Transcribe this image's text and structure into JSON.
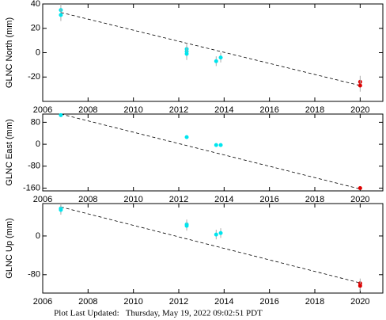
{
  "chart_data": [
    {
      "type": "scatter",
      "ylabel": "GLNC North (mm)",
      "xlim": [
        2006,
        2021
      ],
      "xticks": [
        2006,
        2008,
        2010,
        2012,
        2014,
        2016,
        2018,
        2020
      ],
      "ylim": [
        -40,
        40
      ],
      "yticks": [
        -20,
        0,
        20,
        40
      ],
      "series": [
        {
          "color": "#00e5ee",
          "x": [
            2006.8,
            2006.8,
            2012.35,
            2012.35,
            2012.35,
            2013.65,
            2013.85
          ],
          "values": [
            35,
            31,
            3,
            1,
            -1,
            -7,
            -4
          ],
          "errors": [
            5,
            5,
            5,
            5,
            5,
            4,
            4
          ]
        },
        {
          "color": "#dd0000",
          "x": [
            2020,
            2020
          ],
          "values": [
            -24,
            -27
          ],
          "errors": [
            5,
            5
          ]
        }
      ],
      "trend": {
        "x": [
          2006.8,
          2020
        ],
        "values": [
          33,
          -27
        ]
      }
    },
    {
      "type": "scatter",
      "ylabel": "GLNC East (mm)",
      "xlim": [
        2006,
        2021
      ],
      "xticks": [
        2006,
        2008,
        2010,
        2012,
        2014,
        2016,
        2018,
        2020
      ],
      "ylim": [
        -170,
        110
      ],
      "yticks": [
        -160,
        -80,
        0,
        80
      ],
      "series": [
        {
          "color": "#00e5ee",
          "x": [
            2006.8,
            2012.35,
            2013.65,
            2013.85
          ],
          "values": [
            106,
            26,
            -3,
            -3
          ],
          "errors": [
            4,
            4,
            4,
            4
          ]
        },
        {
          "color": "#dd0000",
          "x": [
            2020
          ],
          "values": [
            -160
          ],
          "errors": [
            4
          ]
        }
      ],
      "trend": {
        "x": [
          2006.8,
          2020
        ],
        "values": [
          110,
          -163
        ]
      }
    },
    {
      "type": "scatter",
      "ylabel": "GLNC Up (mm)",
      "xlim": [
        2006,
        2021
      ],
      "xticks": [
        2006,
        2008,
        2010,
        2012,
        2014,
        2016,
        2018,
        2020
      ],
      "ylim": [
        -118,
        67
      ],
      "yticks": [
        -80,
        0
      ],
      "series": [
        {
          "color": "#00e5ee",
          "x": [
            2006.8,
            2006.8,
            2012.35,
            2012.35,
            2013.65,
            2013.85
          ],
          "values": [
            57,
            54,
            24,
            21,
            3,
            6
          ],
          "errors": [
            10,
            10,
            10,
            10,
            10,
            10
          ]
        },
        {
          "color": "#dd0000",
          "x": [
            2020,
            2020
          ],
          "values": [
            -98,
            -103
          ],
          "errors": [
            10,
            10
          ]
        }
      ],
      "trend": {
        "x": [
          2006.8,
          2020
        ],
        "values": [
          60,
          -97
        ]
      }
    }
  ],
  "footer": "Plot Last Updated:   Thursday, May 19, 2022 09:02:51 PDT"
}
